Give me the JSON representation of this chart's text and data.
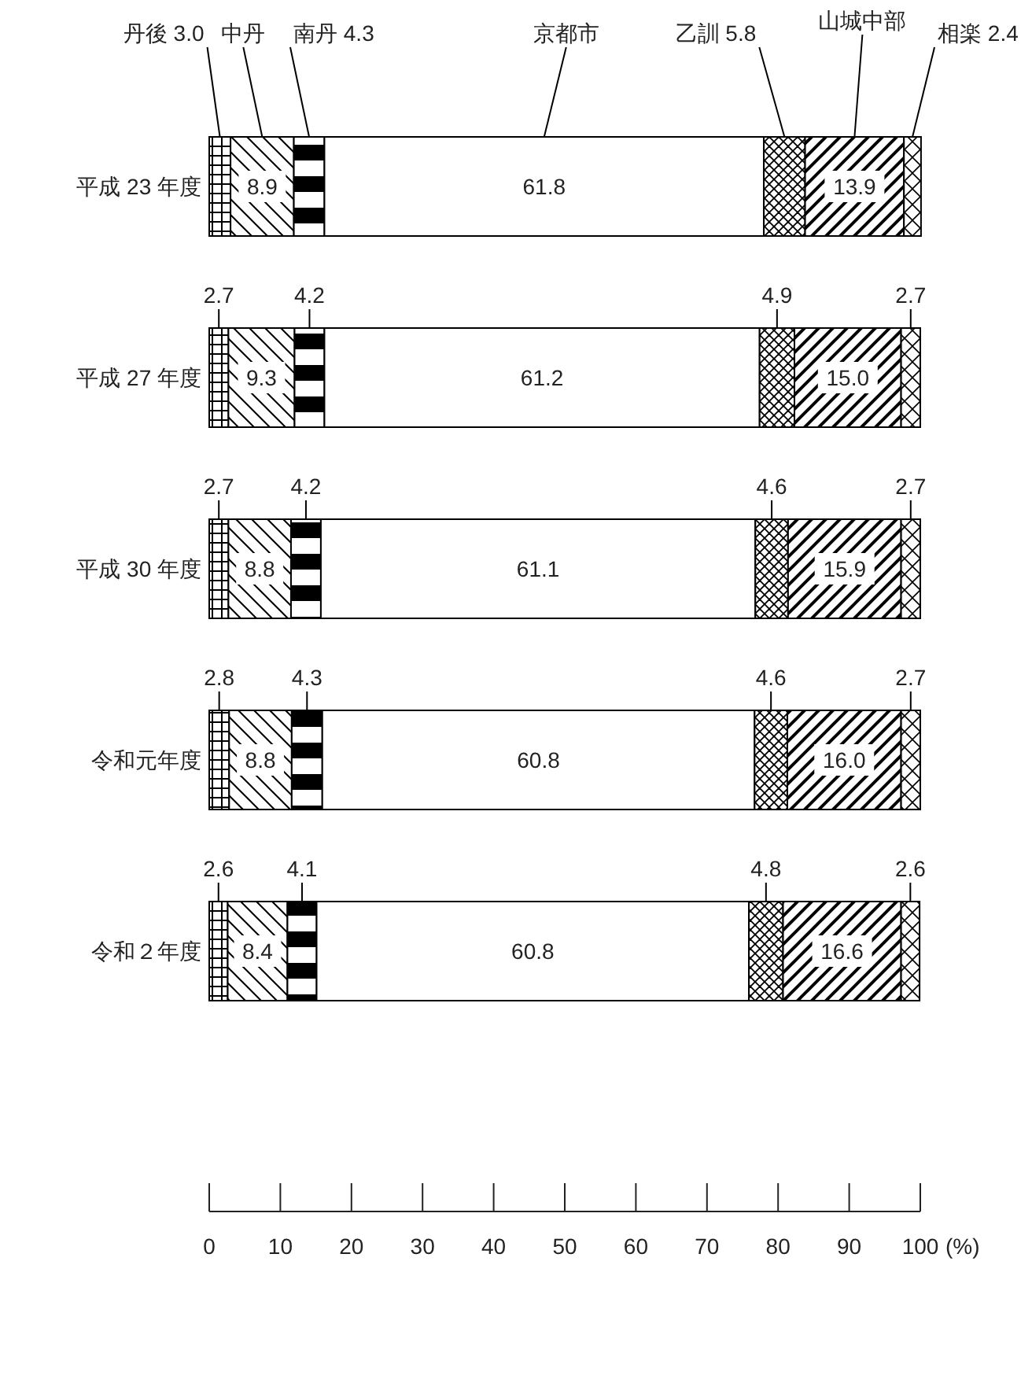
{
  "chart_data": {
    "type": "bar",
    "orientation": "horizontal",
    "stacked": true,
    "xlabel": "(%)",
    "categories": [
      "平成 23 年度",
      "平成 27 年度",
      "平成 30 年度",
      "令和元年度",
      "令和２年度"
    ],
    "xlim": [
      0,
      100
    ],
    "xticks": [
      0,
      10,
      20,
      30,
      40,
      50,
      60,
      70,
      80,
      90,
      100
    ],
    "series": [
      {
        "name": "丹後",
        "color": "#000000",
        "values": [
          3.0,
          2.7,
          2.7,
          2.8,
          2.6
        ],
        "value_labels": [
          "3.0",
          "2.7",
          "2.7",
          "2.8",
          "2.6"
        ]
      },
      {
        "name": "中丹",
        "color": "#000000",
        "values": [
          8.9,
          9.3,
          8.8,
          8.8,
          8.4
        ],
        "value_labels": [
          "8.9",
          "9.3",
          "8.8",
          "8.8",
          "8.4"
        ]
      },
      {
        "name": "南丹",
        "color": "#000000",
        "values": [
          4.3,
          4.2,
          4.2,
          4.3,
          4.1
        ],
        "value_labels": [
          "4.3",
          "4.2",
          "4.2",
          "4.3",
          "4.1"
        ]
      },
      {
        "name": "京都市",
        "color": "#ffffff",
        "values": [
          61.8,
          61.2,
          61.1,
          60.8,
          60.8
        ],
        "value_labels": [
          "61.8",
          "61.2",
          "61.1",
          "60.8",
          "60.8"
        ]
      },
      {
        "name": "乙訓",
        "color": "#000000",
        "values": [
          5.8,
          4.9,
          4.6,
          4.6,
          4.8
        ],
        "value_labels": [
          "5.8",
          "4.9",
          "4.6",
          "4.6",
          "4.8"
        ]
      },
      {
        "name": "山城中部",
        "color": "#000000",
        "values": [
          13.9,
          15.0,
          15.9,
          16.0,
          16.6
        ],
        "value_labels": [
          "13.9",
          "15.0",
          "15.9",
          "16.0",
          "16.6"
        ]
      },
      {
        "name": "相楽",
        "color": "#000000",
        "values": [
          2.4,
          2.7,
          2.7,
          2.7,
          2.6
        ],
        "value_labels": [
          "2.4",
          "2.7",
          "2.7",
          "2.7",
          "2.6"
        ]
      }
    ]
  }
}
